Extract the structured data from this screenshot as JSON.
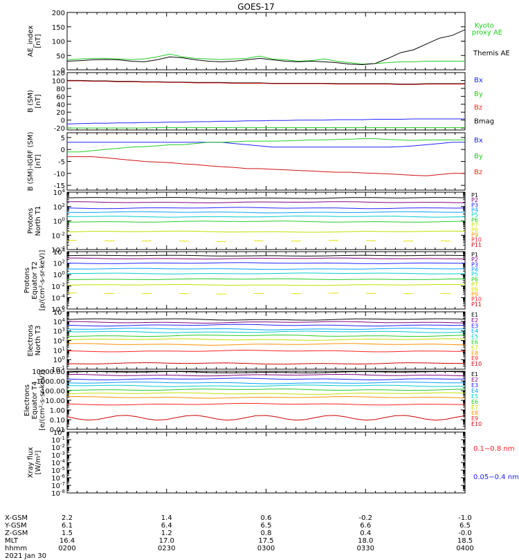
{
  "title": "GOES-17",
  "chart_data": [
    {
      "type": "line",
      "ylabel": "AE_index [nT]",
      "ylim": [
        0,
        200
      ],
      "yticks": [
        "0",
        "50",
        "100",
        "150",
        "200"
      ],
      "legend": [
        {
          "name": "Kyoto proxy AE",
          "color": "#22cc22"
        },
        {
          "name": "Themis AE",
          "color": "#000000"
        }
      ],
      "series": [
        {
          "name": "Kyoto proxy AE",
          "color": "#22cc22",
          "values": [
            35,
            38,
            40,
            40,
            38,
            36,
            38,
            45,
            55,
            45,
            40,
            38,
            36,
            38,
            40,
            48,
            38,
            35,
            30,
            32,
            38,
            30,
            25,
            20,
            22,
            25,
            28,
            28,
            30,
            30,
            30,
            30
          ]
        },
        {
          "name": "Themis AE",
          "color": "#000000",
          "values": [
            30,
            32,
            35,
            36,
            35,
            30,
            28,
            35,
            45,
            42,
            35,
            30,
            28,
            30,
            35,
            40,
            35,
            30,
            28,
            30,
            28,
            25,
            20,
            18,
            22,
            40,
            60,
            70,
            90,
            110,
            120,
            140
          ]
        }
      ]
    },
    {
      "type": "line",
      "ylabel": "B (SM) [nT]",
      "ylim": [
        -25,
        120
      ],
      "yticks": [
        "-20",
        "0",
        "20",
        "40",
        "60",
        "80",
        "100",
        "120"
      ],
      "legend": [
        {
          "name": "Bx",
          "color": "#2020ff"
        },
        {
          "name": "By",
          "color": "#22cc22"
        },
        {
          "name": "Bz",
          "color": "#ff2020"
        },
        {
          "name": "Bmag",
          "color": "#000000"
        }
      ],
      "series": [
        {
          "name": "Bmag",
          "color": "#000000",
          "values": [
            100,
            100,
            99,
            99,
            98,
            98,
            97,
            97,
            96,
            96,
            95,
            95,
            95,
            94,
            94,
            94,
            93,
            93,
            93,
            93,
            93,
            92,
            92,
            92,
            92,
            92,
            91,
            91,
            92,
            92,
            92,
            92
          ]
        },
        {
          "name": "Bz",
          "color": "#d01010",
          "values": [
            99,
            99,
            98,
            98,
            97,
            97,
            96,
            96,
            95,
            95,
            94,
            94,
            94,
            93,
            93,
            93,
            92,
            92,
            92,
            92,
            92,
            91,
            91,
            91,
            91,
            91,
            90,
            90,
            91,
            91,
            91,
            91
          ]
        },
        {
          "name": "Bx",
          "color": "#2020ff",
          "values": [
            -10,
            -9,
            -8,
            -8,
            -7,
            -7,
            -6,
            -6,
            -5,
            -5,
            -4,
            -4,
            -3,
            -3,
            -2,
            -2,
            -1,
            -1,
            0,
            0,
            0,
            1,
            1,
            1,
            2,
            2,
            2,
            3,
            3,
            3,
            3,
            3
          ]
        },
        {
          "name": "By",
          "color": "#22cc22",
          "values": [
            -20,
            -20,
            -20,
            -20,
            -20,
            -20,
            -20,
            -19,
            -19,
            -19,
            -19,
            -19,
            -19,
            -19,
            -19,
            -19,
            -19,
            -19,
            -19,
            -19,
            -19,
            -19,
            -19,
            -19,
            -19,
            -19,
            -19,
            -19,
            -19,
            -19,
            -19,
            -19
          ]
        }
      ]
    },
    {
      "type": "line",
      "ylabel": "B (SM)-IGRF (SM) [nT]",
      "ylim": [
        -17,
        7
      ],
      "yticks": [
        "-15",
        "-10",
        "-5",
        "0",
        "5"
      ],
      "legend": [
        {
          "name": "Bx",
          "color": "#2020ff"
        },
        {
          "name": "By",
          "color": "#22cc22"
        },
        {
          "name": "Bz",
          "color": "#ff2020"
        }
      ],
      "series": [
        {
          "name": "Bx",
          "color": "#2020ff",
          "values": [
            3,
            3,
            3,
            3,
            3,
            3,
            3,
            3,
            3,
            3,
            3,
            3,
            3,
            2.5,
            2,
            1.5,
            1,
            1,
            1,
            1,
            1,
            1,
            1,
            1,
            1,
            1,
            1.2,
            1.5,
            2,
            2.5,
            3,
            3
          ]
        },
        {
          "name": "By",
          "color": "#22cc22",
          "values": [
            -1,
            -1,
            -0.5,
            0,
            0.5,
            1,
            1.2,
            1.5,
            2,
            2,
            2.5,
            3,
            3,
            3.2,
            3.5,
            3.5,
            3.5,
            3.6,
            3.8,
            4,
            4,
            4.2,
            4.3,
            4.5,
            4.5,
            4.2,
            4,
            3.8,
            4,
            4,
            4,
            4
          ]
        },
        {
          "name": "Bz",
          "color": "#d01010",
          "values": [
            -3,
            -3,
            -3,
            -3.5,
            -4,
            -4.5,
            -5,
            -5.3,
            -5.5,
            -6,
            -6.3,
            -6.8,
            -7.2,
            -7.5,
            -8,
            -8,
            -8.3,
            -8.5,
            -8.8,
            -9,
            -9.3,
            -9.5,
            -9.5,
            -9.8,
            -10,
            -10.2,
            -10.5,
            -10.8,
            -11,
            -10.5,
            -10,
            -10
          ]
        }
      ]
    },
    {
      "type": "line",
      "ylabel": "Protons North T1",
      "scale": "log",
      "ylim": [
        -4,
        4
      ],
      "yticks": [
        "10^4",
        "10^2",
        "10^0",
        "10^-2",
        "10^-4"
      ],
      "legend": [
        {
          "name": "P1",
          "color": "#000000"
        },
        {
          "name": "P2",
          "color": "#800080"
        },
        {
          "name": "P3",
          "color": "#2020ff"
        },
        {
          "name": "P4",
          "color": "#00a0ff"
        },
        {
          "name": "P5",
          "color": "#00cccc"
        },
        {
          "name": "P6",
          "color": "#22cc22"
        },
        {
          "name": "P7",
          "color": "#c0e000"
        },
        {
          "name": "P8",
          "color": "#e0e000"
        },
        {
          "name": "P9",
          "color": "#ff9000"
        },
        {
          "name": "P10",
          "color": "#ff2020"
        },
        {
          "name": "P11",
          "color": "#cc0000"
        }
      ],
      "series": [
        {
          "name": "P1",
          "color": "#000000",
          "level": 3.2
        },
        {
          "name": "P2",
          "color": "#800080",
          "level": 2.6
        },
        {
          "name": "P3",
          "color": "#2020ff",
          "level": 1.8
        },
        {
          "name": "P4",
          "color": "#00a0ff",
          "level": 1.2
        },
        {
          "name": "P5",
          "color": "#00cccc",
          "level": 0.6
        },
        {
          "name": "P6",
          "color": "#22cc22",
          "level": -0.1
        },
        {
          "name": "P7",
          "color": "#c0e000",
          "level": -1.5
        },
        {
          "name": "P8",
          "color": "#e0e000",
          "level": -2.8,
          "dashed": true
        }
      ]
    },
    {
      "type": "line",
      "ylabel": "Protons Equator T2 [p/(cm²-s-sr-keV)]",
      "scale": "log",
      "ylim": [
        -6,
        4
      ],
      "yticks": [
        "10^4",
        "10^2",
        "10^0",
        "10^-2",
        "10^-4",
        "10^-6"
      ],
      "legend": [
        {
          "name": "P1",
          "color": "#000000"
        },
        {
          "name": "P2",
          "color": "#800080"
        },
        {
          "name": "P3",
          "color": "#2020ff"
        },
        {
          "name": "P4",
          "color": "#00a0ff"
        },
        {
          "name": "P5",
          "color": "#00cccc"
        },
        {
          "name": "P6",
          "color": "#22cc22"
        },
        {
          "name": "P7",
          "color": "#c0e000"
        },
        {
          "name": "P8",
          "color": "#e0e000"
        },
        {
          "name": "P9",
          "color": "#ff9000"
        },
        {
          "name": "P10",
          "color": "#ff2020"
        },
        {
          "name": "P11",
          "color": "#cc0000"
        }
      ],
      "series": [
        {
          "name": "P1",
          "color": "#000000",
          "level": 3.3
        },
        {
          "name": "P2",
          "color": "#800080",
          "level": 2.8
        },
        {
          "name": "P3",
          "color": "#2020ff",
          "level": 2.0
        },
        {
          "name": "P4",
          "color": "#00a0ff",
          "level": 1.0
        },
        {
          "name": "P5",
          "color": "#00cccc",
          "level": 0.2
        },
        {
          "name": "P6",
          "color": "#22cc22",
          "level": -0.8
        },
        {
          "name": "P7",
          "color": "#c0e000",
          "level": -1.8
        },
        {
          "name": "P8",
          "color": "#e0e000",
          "level": -3.3,
          "dashed": true
        }
      ]
    },
    {
      "type": "line",
      "ylabel": "Electrons North T3",
      "scale": "log",
      "ylim": [
        -1,
        5
      ],
      "yticks": [
        "10^5",
        "10^4",
        "10^3",
        "10^2",
        "10^1",
        "10^0",
        "10^-1"
      ],
      "legend": [
        {
          "name": "E1",
          "color": "#000000"
        },
        {
          "name": "E2",
          "color": "#800080"
        },
        {
          "name": "E3",
          "color": "#2020ff"
        },
        {
          "name": "E4",
          "color": "#00a0ff"
        },
        {
          "name": "E5",
          "color": "#00cccc"
        },
        {
          "name": "E6",
          "color": "#22cc22"
        },
        {
          "name": "E7",
          "color": "#c0e000"
        },
        {
          "name": "E8",
          "color": "#ff9000"
        },
        {
          "name": "E9",
          "color": "#ff2020"
        },
        {
          "name": "E10",
          "color": "#cc0000"
        }
      ],
      "series": [
        {
          "name": "E1",
          "color": "#000000",
          "level": 4.2
        },
        {
          "name": "E2",
          "color": "#800080",
          "level": 3.9
        },
        {
          "name": "E3",
          "color": "#2020ff",
          "level": 3.6
        },
        {
          "name": "E4",
          "color": "#00a0ff",
          "level": 3.2
        },
        {
          "name": "E5",
          "color": "#00cccc",
          "level": 2.9
        },
        {
          "name": "E6",
          "color": "#22cc22",
          "level": 2.5
        },
        {
          "name": "E7",
          "color": "#c0e000",
          "level": 2.1
        },
        {
          "name": "E8",
          "color": "#ff9000",
          "level": 1.6
        },
        {
          "name": "E9",
          "color": "#ff2020",
          "level": 0.9
        },
        {
          "name": "E10",
          "color": "#cc0000",
          "level": -0.4
        }
      ]
    },
    {
      "type": "line",
      "ylabel": "Electrons Equator T4 [e/(cm²-s-sr-keV)]",
      "scale": "log",
      "ylim": [
        -2,
        4
      ],
      "yticks": [
        "10000.00",
        "1000.00",
        "100.00",
        "10.00",
        "1.00",
        "0.10",
        "0.01"
      ],
      "legend": [
        {
          "name": "E1",
          "color": "#000000"
        },
        {
          "name": "E2",
          "color": "#800080"
        },
        {
          "name": "E3",
          "color": "#2020ff"
        },
        {
          "name": "E4",
          "color": "#00a0ff"
        },
        {
          "name": "E5",
          "color": "#00cccc"
        },
        {
          "name": "E6",
          "color": "#22cc22"
        },
        {
          "name": "E7",
          "color": "#c0e000"
        },
        {
          "name": "E8",
          "color": "#ff9000"
        },
        {
          "name": "E9",
          "color": "#ff2020"
        },
        {
          "name": "E10",
          "color": "#cc0000"
        }
      ],
      "series": [
        {
          "name": "E1",
          "color": "#000000",
          "level": 3.9
        },
        {
          "name": "E2",
          "color": "#800080",
          "level": 3.6
        },
        {
          "name": "E3",
          "color": "#2020ff",
          "level": 3.2
        },
        {
          "name": "E4",
          "color": "#00a0ff",
          "level": 2.8
        },
        {
          "name": "E5",
          "color": "#00cccc",
          "level": 2.5
        },
        {
          "name": "E6",
          "color": "#22cc22",
          "level": 2.1
        },
        {
          "name": "E7",
          "color": "#c0e000",
          "level": 1.7
        },
        {
          "name": "E8",
          "color": "#ff9000",
          "level": 1.3
        },
        {
          "name": "E9",
          "color": "#ff2020",
          "level": 0.6
        },
        {
          "name": "E10",
          "color": "#cc0000",
          "level": -0.8,
          "wiggle": true
        }
      ]
    },
    {
      "type": "line",
      "ylabel": "Xray flux [W/m²]",
      "scale": "log",
      "ylim": [
        -8,
        0
      ],
      "yticks": [
        "10^0",
        "10^-1",
        "10^-2",
        "10^-3",
        "10^-4",
        "10^-5",
        "10^-6",
        "10^-7",
        "10^-8"
      ],
      "legend": [
        {
          "name": "0.1−0.8 nm",
          "color": "#ff2020"
        },
        {
          "name": "0.05−0.4 nm",
          "color": "#2020ff"
        }
      ],
      "series": []
    }
  ],
  "footer": {
    "rows": [
      {
        "label": "X-GSM",
        "values": [
          "2.2",
          "1.4",
          "0.6",
          "-0.2",
          "-1.0"
        ]
      },
      {
        "label": "Y-GSM",
        "values": [
          "6.1",
          "6.4",
          "6.5",
          "6.6",
          "6.5"
        ]
      },
      {
        "label": "Z-GSM",
        "values": [
          "1.5",
          "1.2",
          "0.8",
          "0.4",
          "-0.0"
        ]
      },
      {
        "label": "MLT",
        "values": [
          "16.4",
          "17.0",
          "17.5",
          "18.0",
          "18.5"
        ]
      },
      {
        "label": "hhmm",
        "values": [
          "0200",
          "0230",
          "0300",
          "0330",
          "0400"
        ]
      }
    ],
    "date": "2021 Jan 30"
  }
}
